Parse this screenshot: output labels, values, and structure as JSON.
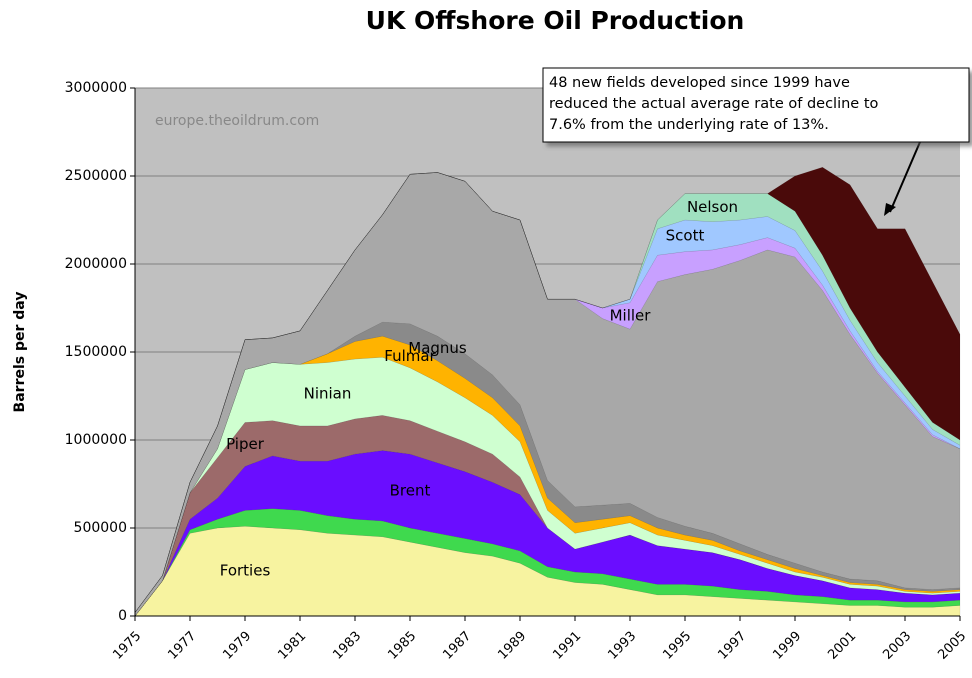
{
  "chart_data": {
    "type": "stacked_area",
    "title": "UK Offshore Oil Production",
    "y_label": "Barrels per day",
    "watermark": "europe.theoildrum.com",
    "annotation": [
      "48 new fields developed since 1999 have",
      "reduced the actual average rate of decline to",
      "7.6% from the underlying rate of 13%."
    ],
    "x": [
      1975,
      1976,
      1977,
      1978,
      1979,
      1980,
      1981,
      1982,
      1983,
      1984,
      1985,
      1986,
      1987,
      1988,
      1989,
      1990,
      1991,
      1992,
      1993,
      1994,
      1995,
      1996,
      1997,
      1998,
      1999,
      2000,
      2001,
      2002,
      2003,
      2004,
      2005
    ],
    "xlim": [
      1975,
      2005
    ],
    "xticks": [
      1975,
      1977,
      1979,
      1981,
      1983,
      1985,
      1987,
      1989,
      1991,
      1993,
      1995,
      1997,
      1999,
      2001,
      2003,
      2005
    ],
    "ylim": [
      0,
      3000000
    ],
    "yticks": [
      0,
      500000,
      1000000,
      1500000,
      2000000,
      2500000,
      3000000
    ],
    "grid": true,
    "series": [
      {
        "name": "Forties",
        "color": "#f7f3a0",
        "values": [
          0,
          200000,
          470000,
          500000,
          510000,
          500000,
          490000,
          470000,
          460000,
          450000,
          420000,
          390000,
          360000,
          340000,
          300000,
          220000,
          190000,
          180000,
          150000,
          120000,
          120000,
          110000,
          100000,
          90000,
          80000,
          70000,
          60000,
          60000,
          50000,
          50000,
          60000
        ]
      },
      {
        "color": "#3fd94e",
        "values": [
          0,
          0,
          20000,
          50000,
          90000,
          110000,
          110000,
          100000,
          90000,
          90000,
          80000,
          80000,
          80000,
          70000,
          70000,
          60000,
          60000,
          60000,
          60000,
          60000,
          60000,
          60000,
          50000,
          50000,
          40000,
          40000,
          30000,
          30000,
          30000,
          30000,
          30000
        ]
      },
      {
        "name": "Brent",
        "color": "#6a0dff",
        "values": [
          0,
          0,
          60000,
          120000,
          250000,
          300000,
          280000,
          310000,
          370000,
          400000,
          420000,
          400000,
          380000,
          350000,
          320000,
          220000,
          130000,
          180000,
          250000,
          220000,
          200000,
          190000,
          170000,
          130000,
          110000,
          90000,
          70000,
          60000,
          50000,
          40000,
          40000
        ]
      },
      {
        "name": "Piper",
        "color": "#9c6a6a",
        "values": [
          0,
          0,
          150000,
          230000,
          250000,
          200000,
          200000,
          200000,
          200000,
          200000,
          190000,
          180000,
          170000,
          160000,
          100000,
          0,
          0,
          0,
          0,
          0,
          0,
          0,
          0,
          0,
          0,
          0,
          0,
          0,
          0,
          0,
          0
        ]
      },
      {
        "name": "Ninian",
        "color": "#cfffd0",
        "values": [
          0,
          0,
          0,
          50000,
          300000,
          330000,
          350000,
          360000,
          340000,
          330000,
          300000,
          280000,
          250000,
          220000,
          200000,
          100000,
          90000,
          80000,
          70000,
          60000,
          50000,
          40000,
          30000,
          30000,
          20000,
          20000,
          20000,
          20000,
          10000,
          10000,
          10000
        ]
      },
      {
        "name": "Fulmar",
        "color": "#ffb300",
        "values": [
          0,
          0,
          0,
          0,
          0,
          0,
          0,
          50000,
          100000,
          120000,
          130000,
          120000,
          110000,
          100000,
          90000,
          70000,
          60000,
          50000,
          40000,
          40000,
          30000,
          30000,
          20000,
          20000,
          20000,
          10000,
          10000,
          10000,
          10000,
          10000,
          10000
        ]
      },
      {
        "name": "Magnus",
        "color": "#8a8a8a",
        "values": [
          0,
          0,
          0,
          0,
          0,
          0,
          0,
          0,
          30000,
          80000,
          120000,
          140000,
          140000,
          130000,
          120000,
          100000,
          90000,
          80000,
          70000,
          60000,
          50000,
          40000,
          40000,
          30000,
          30000,
          20000,
          20000,
          20000,
          10000,
          10000,
          10000
        ]
      },
      {
        "color": "#a8a8a8",
        "values": [
          20000,
          30000,
          60000,
          130000,
          170000,
          140000,
          190000,
          360000,
          490000,
          610000,
          850000,
          930000,
          980000,
          930000,
          1050000,
          1030000,
          1180000,
          1060000,
          990000,
          1340000,
          1430000,
          1500000,
          1610000,
          1730000,
          1740000,
          1600000,
          1390000,
          1180000,
          1040000,
          870000,
          790000
        ]
      },
      {
        "name": "Miller",
        "color": "#c8a0ff",
        "values": [
          0,
          0,
          0,
          0,
          0,
          0,
          0,
          0,
          0,
          0,
          0,
          0,
          0,
          0,
          0,
          0,
          0,
          60000,
          150000,
          150000,
          130000,
          110000,
          90000,
          70000,
          50000,
          30000,
          20000,
          10000,
          10000,
          10000,
          0
        ]
      },
      {
        "name": "Scott",
        "color": "#a0c8ff",
        "values": [
          0,
          0,
          0,
          0,
          0,
          0,
          0,
          0,
          0,
          0,
          0,
          0,
          0,
          0,
          0,
          0,
          0,
          0,
          20000,
          150000,
          180000,
          160000,
          140000,
          120000,
          100000,
          80000,
          60000,
          50000,
          40000,
          30000,
          20000
        ]
      },
      {
        "name": "Nelson",
        "color": "#a0e0c0",
        "values": [
          0,
          0,
          0,
          0,
          0,
          0,
          0,
          0,
          0,
          0,
          0,
          0,
          0,
          0,
          0,
          0,
          0,
          0,
          0,
          50000,
          150000,
          160000,
          150000,
          130000,
          110000,
          90000,
          70000,
          60000,
          50000,
          40000,
          30000
        ]
      },
      {
        "color": "#4a0a0a",
        "values": [
          0,
          0,
          0,
          0,
          0,
          0,
          0,
          0,
          0,
          0,
          0,
          0,
          0,
          0,
          0,
          0,
          0,
          0,
          0,
          0,
          0,
          0,
          0,
          0,
          200000,
          500000,
          700000,
          700000,
          900000,
          800000,
          600000
        ]
      }
    ]
  }
}
